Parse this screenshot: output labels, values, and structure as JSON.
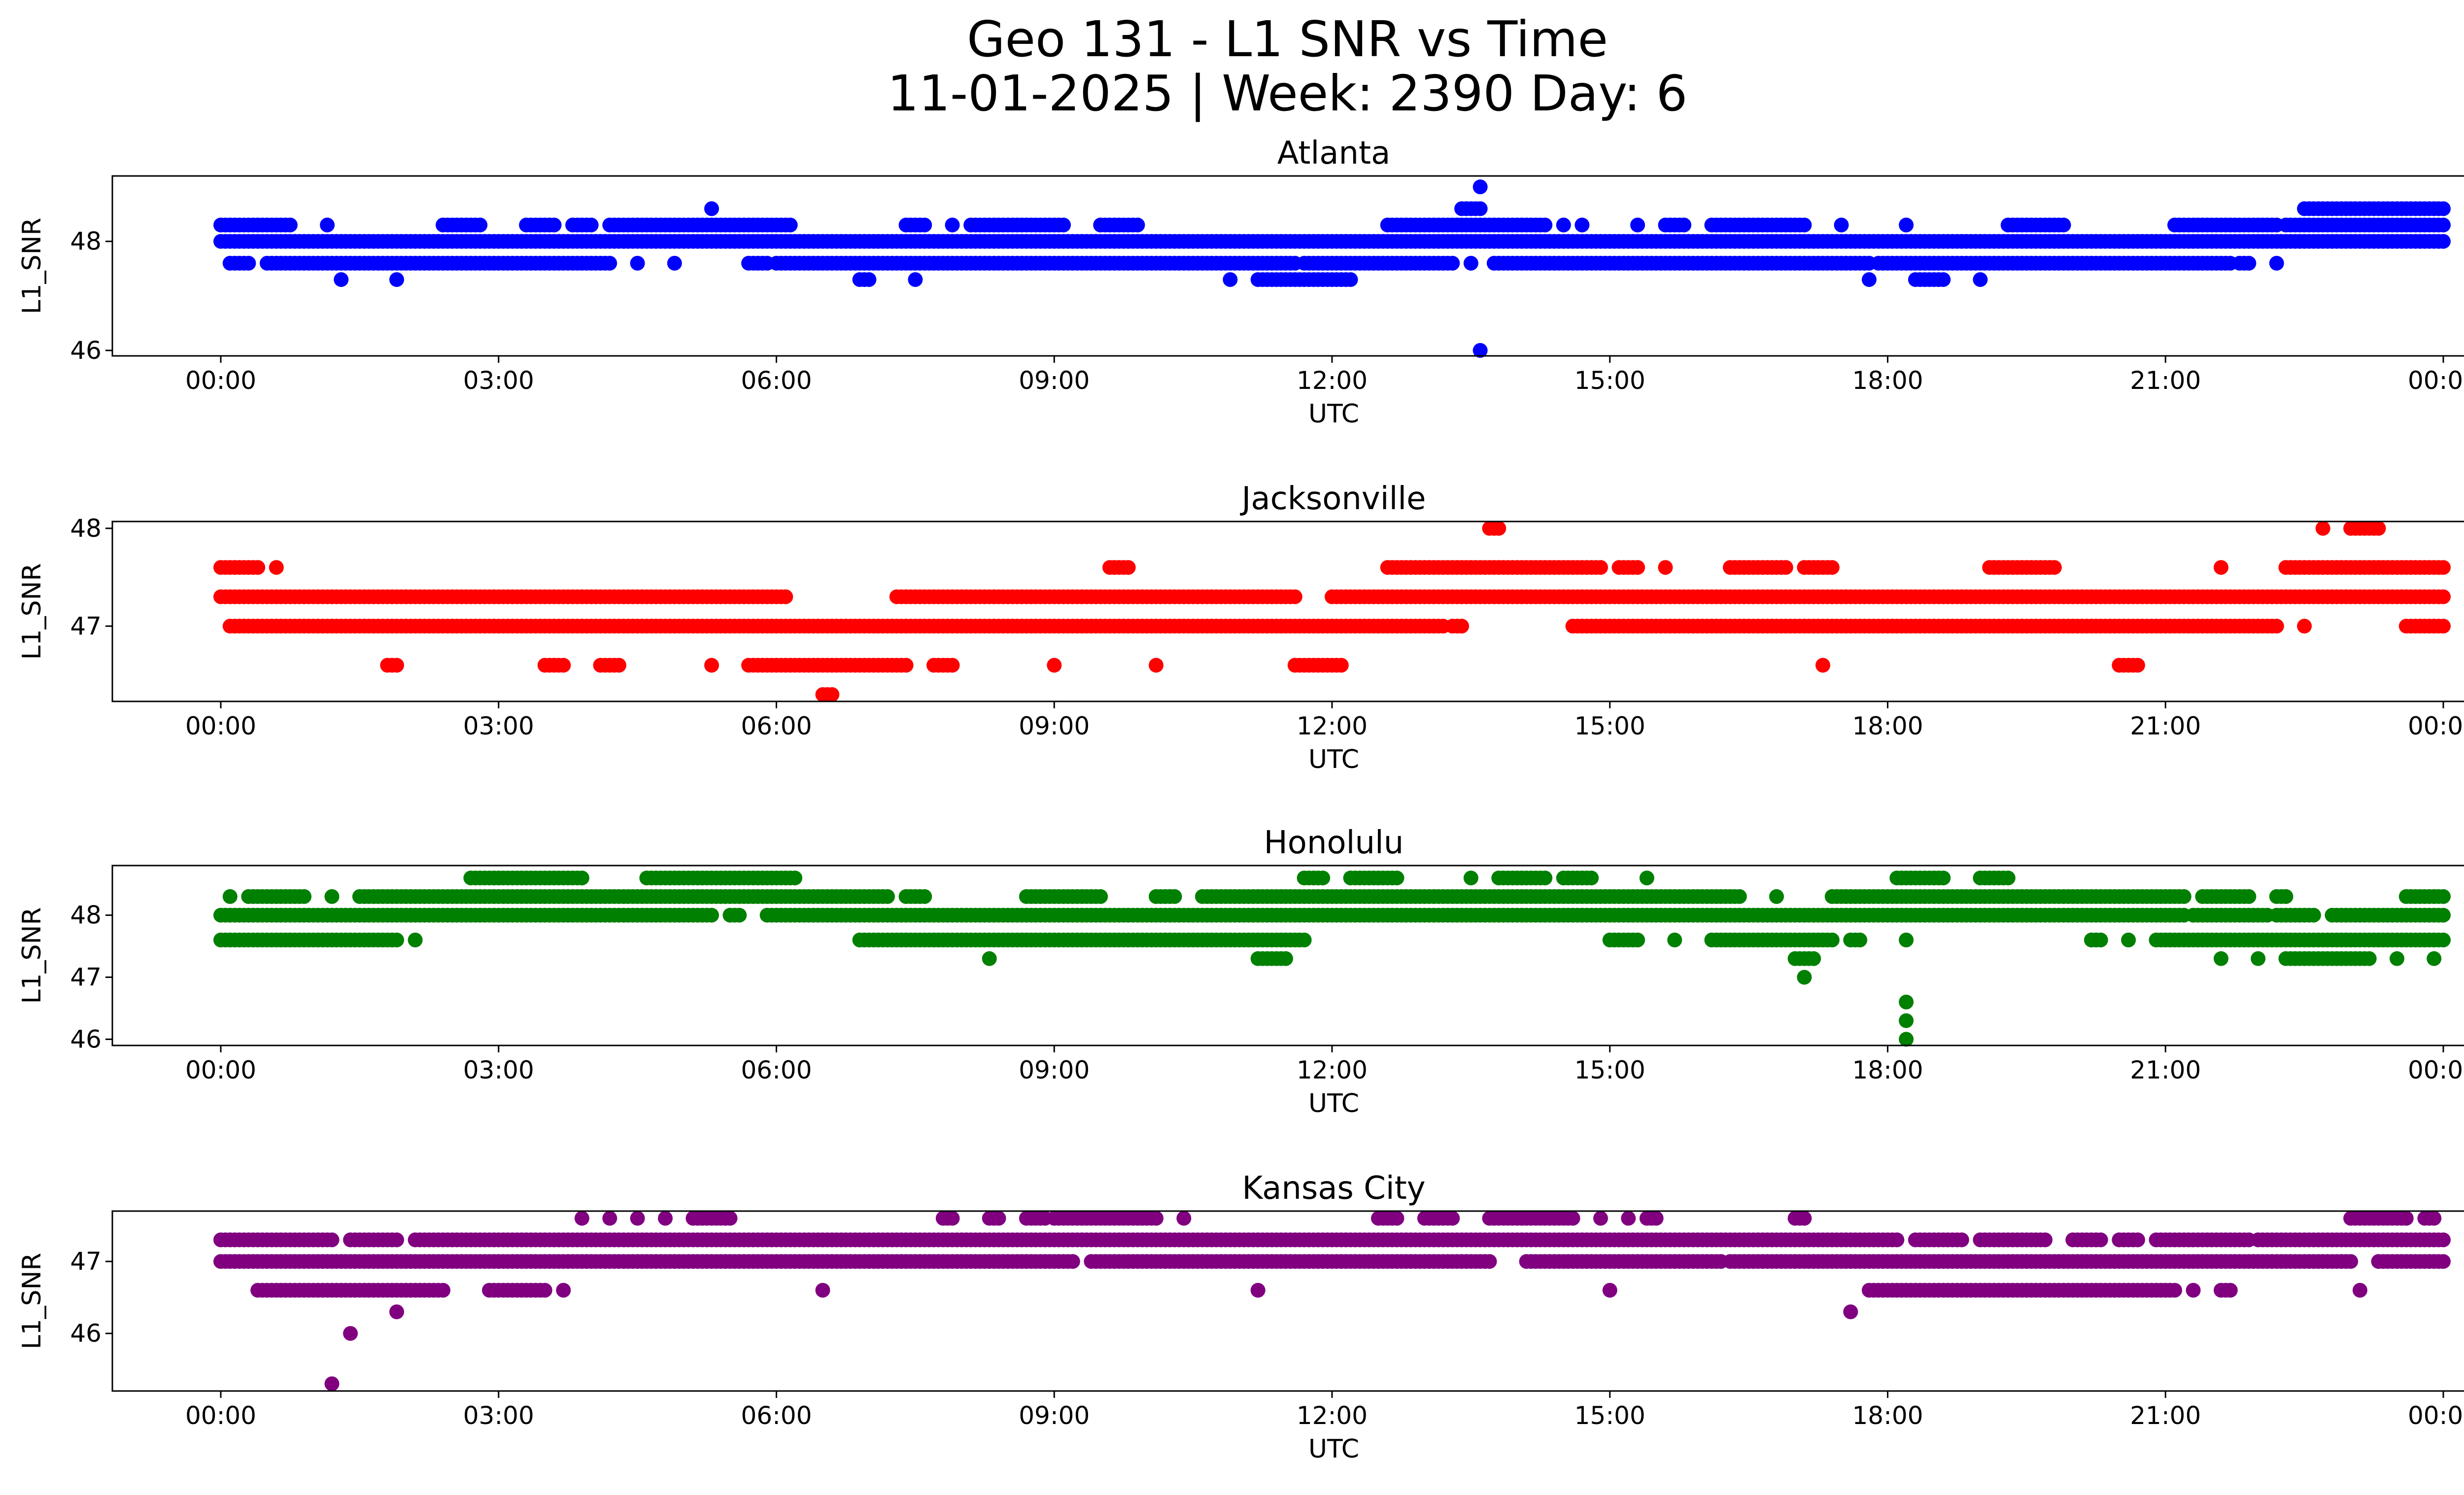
{
  "title": {
    "line1": "Geo 131 - L1 SNR vs Time",
    "line2": "11-01-2025 | Week: 2390 Day: 6"
  },
  "chart_data": [
    {
      "type": "scatter",
      "title": "Atlanta",
      "color": "#0000ff",
      "xlabel": "UTC",
      "ylabel": "L1_SNR",
      "xlim": [
        -0.4,
        25.2
      ],
      "ylim": [
        45.9,
        49.2
      ],
      "xticks": [
        "00:00",
        "03:00",
        "06:00",
        "09:00",
        "12:00",
        "15:00",
        "18:00",
        "21:00",
        "00:00"
      ],
      "yticks": [
        "46",
        "48"
      ],
      "bands": [
        {
          "y": 48.0,
          "ranges": [
            [
              0.0,
              24.0
            ]
          ]
        },
        {
          "y": 48.3,
          "ranges": [
            [
              0.0,
              0.75
            ],
            [
              1.15,
              1.15
            ],
            [
              2.4,
              2.8
            ],
            [
              3.3,
              3.6
            ],
            [
              3.8,
              4.0
            ],
            [
              4.2,
              6.15
            ],
            [
              7.4,
              7.6
            ],
            [
              7.9,
              7.9
            ],
            [
              8.1,
              9.1
            ],
            [
              9.5,
              9.9
            ],
            [
              12.6,
              14.3
            ],
            [
              14.5,
              14.5
            ],
            [
              14.7,
              14.7
            ],
            [
              15.3,
              15.3
            ],
            [
              15.6,
              15.8
            ],
            [
              16.1,
              17.1
            ],
            [
              17.5,
              17.5
            ],
            [
              18.2,
              18.2
            ],
            [
              19.3,
              19.9
            ],
            [
              21.1,
              22.2
            ],
            [
              22.3,
              24.0
            ]
          ]
        },
        {
          "y": 47.6,
          "ranges": [
            [
              0.1,
              0.3
            ],
            [
              0.5,
              4.2
            ],
            [
              4.5,
              4.5
            ],
            [
              4.9,
              4.9
            ],
            [
              5.7,
              5.9
            ],
            [
              6.0,
              11.6
            ],
            [
              11.7,
              13.3
            ],
            [
              13.5,
              13.5
            ],
            [
              13.75,
              17.8
            ],
            [
              17.9,
              21.7
            ],
            [
              21.8,
              21.9
            ],
            [
              22.2,
              22.2
            ]
          ]
        },
        {
          "y": 47.3,
          "ranges": [
            [
              1.3,
              1.3
            ],
            [
              1.9,
              1.9
            ],
            [
              6.9,
              7.0
            ],
            [
              7.5,
              7.5
            ],
            [
              10.9,
              10.9
            ],
            [
              11.2,
              12.2
            ],
            [
              17.8,
              17.8
            ],
            [
              18.3,
              18.6
            ],
            [
              19.0,
              19.0
            ]
          ]
        },
        {
          "y": 48.6,
          "ranges": [
            [
              5.3,
              5.3
            ],
            [
              13.4,
              13.6
            ],
            [
              22.5,
              24.0
            ]
          ]
        },
        {
          "y": 49.0,
          "ranges": [
            [
              13.6,
              13.6
            ]
          ]
        },
        {
          "y": 46.0,
          "ranges": [
            [
              13.6,
              13.6
            ]
          ]
        }
      ]
    },
    {
      "type": "scatter",
      "title": "Jacksonville",
      "color": "#ff0000",
      "xlabel": "UTC",
      "ylabel": "L1_SNR",
      "xlim": [
        -0.4,
        25.2
      ],
      "ylim": [
        46.23,
        48.07
      ],
      "xticks": [
        "00:00",
        "03:00",
        "06:00",
        "09:00",
        "12:00",
        "15:00",
        "18:00",
        "21:00",
        "00:00"
      ],
      "yticks": [
        "47",
        "48"
      ],
      "bands": [
        {
          "y": 47.3,
          "ranges": [
            [
              0.0,
              6.1
            ],
            [
              7.3,
              11.6
            ],
            [
              12.0,
              24.0
            ]
          ]
        },
        {
          "y": 47.0,
          "ranges": [
            [
              0.1,
              13.2
            ],
            [
              13.3,
              13.4
            ],
            [
              14.6,
              22.2
            ],
            [
              22.5,
              22.5
            ],
            [
              23.6,
              24.0
            ]
          ]
        },
        {
          "y": 47.6,
          "ranges": [
            [
              0.0,
              0.4
            ],
            [
              0.6,
              0.6
            ],
            [
              9.6,
              9.8
            ],
            [
              12.6,
              14.9
            ],
            [
              15.1,
              15.3
            ],
            [
              15.6,
              15.6
            ],
            [
              16.3,
              16.9
            ],
            [
              17.1,
              17.4
            ],
            [
              19.1,
              19.8
            ],
            [
              21.6,
              21.6
            ],
            [
              22.3,
              24.0
            ]
          ]
        },
        {
          "y": 46.6,
          "ranges": [
            [
              1.8,
              1.9
            ],
            [
              3.5,
              3.7
            ],
            [
              4.1,
              4.3
            ],
            [
              5.3,
              5.3
            ],
            [
              5.7,
              7.4
            ],
            [
              7.7,
              7.9
            ],
            [
              9.0,
              9.0
            ],
            [
              10.1,
              10.1
            ],
            [
              11.6,
              12.1
            ],
            [
              17.3,
              17.3
            ],
            [
              20.5,
              20.7
            ]
          ]
        },
        {
          "y": 46.3,
          "ranges": [
            [
              6.5,
              6.6
            ]
          ]
        },
        {
          "y": 48.0,
          "ranges": [
            [
              13.7,
              13.8
            ],
            [
              22.7,
              22.7
            ],
            [
              23.0,
              23.3
            ]
          ]
        }
      ]
    },
    {
      "type": "scatter",
      "title": "Honolulu",
      "color": "#008000",
      "xlabel": "UTC",
      "ylabel": "L1_SNR",
      "xlim": [
        -0.4,
        25.2
      ],
      "ylim": [
        45.9,
        48.8
      ],
      "xticks": [
        "00:00",
        "03:00",
        "06:00",
        "09:00",
        "12:00",
        "15:00",
        "18:00",
        "21:00",
        "00:00"
      ],
      "yticks": [
        "46",
        "47",
        "48"
      ],
      "bands": [
        {
          "y": 48.0,
          "ranges": [
            [
              0.0,
              5.3
            ],
            [
              5.5,
              5.6
            ],
            [
              5.9,
              21.2
            ],
            [
              21.3,
              22.1
            ],
            [
              22.2,
              22.6
            ],
            [
              22.8,
              24.0
            ]
          ]
        },
        {
          "y": 48.3,
          "ranges": [
            [
              0.1,
              0.1
            ],
            [
              0.3,
              0.9
            ],
            [
              1.2,
              1.2
            ],
            [
              1.5,
              7.2
            ],
            [
              7.4,
              7.6
            ],
            [
              8.7,
              9.5
            ],
            [
              10.1,
              10.3
            ],
            [
              10.6,
              16.4
            ],
            [
              16.8,
              16.8
            ],
            [
              17.4,
              21.2
            ],
            [
              21.4,
              21.9
            ],
            [
              22.2,
              22.3
            ],
            [
              23.6,
              24.0
            ]
          ]
        },
        {
          "y": 47.6,
          "ranges": [
            [
              0.0,
              1.9
            ],
            [
              2.1,
              2.1
            ],
            [
              6.9,
              11.7
            ],
            [
              15.0,
              15.3
            ],
            [
              15.7,
              15.7
            ],
            [
              16.1,
              17.4
            ],
            [
              17.6,
              17.7
            ],
            [
              18.2,
              18.2
            ],
            [
              20.2,
              20.3
            ],
            [
              20.6,
              20.6
            ],
            [
              20.9,
              24.0
            ]
          ]
        },
        {
          "y": 48.6,
          "ranges": [
            [
              2.7,
              3.9
            ],
            [
              4.6,
              6.2
            ],
            [
              11.7,
              11.9
            ],
            [
              12.2,
              12.7
            ],
            [
              13.5,
              13.5
            ],
            [
              13.8,
              14.3
            ],
            [
              14.5,
              14.8
            ],
            [
              15.4,
              15.4
            ],
            [
              18.1,
              18.6
            ],
            [
              19.0,
              19.3
            ]
          ]
        },
        {
          "y": 47.3,
          "ranges": [
            [
              8.3,
              8.3
            ],
            [
              11.2,
              11.5
            ],
            [
              17.0,
              17.2
            ],
            [
              21.6,
              21.6
            ],
            [
              22.0,
              22.0
            ],
            [
              22.3,
              23.2
            ],
            [
              23.5,
              23.5
            ],
            [
              23.9,
              23.9
            ]
          ]
        },
        {
          "y": 47.0,
          "ranges": [
            [
              17.1,
              17.1
            ]
          ]
        },
        {
          "y": 46.6,
          "ranges": [
            [
              18.2,
              18.2
            ]
          ]
        },
        {
          "y": 46.3,
          "ranges": [
            [
              18.2,
              18.2
            ]
          ]
        },
        {
          "y": 46.0,
          "ranges": [
            [
              18.2,
              18.2
            ]
          ]
        }
      ]
    },
    {
      "type": "scatter",
      "title": "Kansas City",
      "color": "#800080",
      "xlabel": "UTC",
      "ylabel": "L1_SNR",
      "xlim": [
        -0.4,
        25.2
      ],
      "ylim": [
        45.2,
        47.7
      ],
      "xticks": [
        "00:00",
        "03:00",
        "06:00",
        "09:00",
        "12:00",
        "15:00",
        "18:00",
        "21:00",
        "00:00"
      ],
      "yticks": [
        "46",
        "47"
      ],
      "bands": [
        {
          "y": 47.3,
          "ranges": [
            [
              0.0,
              1.2
            ],
            [
              1.4,
              1.9
            ],
            [
              2.1,
              18.1
            ],
            [
              18.3,
              18.8
            ],
            [
              19.0,
              19.7
            ],
            [
              20.0,
              20.3
            ],
            [
              20.5,
              20.7
            ],
            [
              20.9,
              21.9
            ],
            [
              22.0,
              24.0
            ]
          ]
        },
        {
          "y": 47.0,
          "ranges": [
            [
              0.0,
              9.2
            ],
            [
              9.4,
              13.7
            ],
            [
              14.1,
              16.2
            ],
            [
              16.3,
              23.0
            ],
            [
              23.3,
              24.0
            ]
          ]
        },
        {
          "y": 46.6,
          "ranges": [
            [
              0.4,
              2.4
            ],
            [
              2.9,
              3.5
            ],
            [
              3.7,
              3.7
            ],
            [
              6.5,
              6.5
            ],
            [
              11.2,
              11.2
            ],
            [
              15.0,
              15.0
            ],
            [
              17.8,
              21.1
            ],
            [
              21.3,
              21.3
            ],
            [
              21.6,
              21.7
            ],
            [
              23.1,
              23.1
            ]
          ]
        },
        {
          "y": 47.6,
          "ranges": [
            [
              3.9,
              3.9
            ],
            [
              4.2,
              4.2
            ],
            [
              4.5,
              4.5
            ],
            [
              4.8,
              4.8
            ],
            [
              5.1,
              5.5
            ],
            [
              7.8,
              7.9
            ],
            [
              8.3,
              8.4
            ],
            [
              8.7,
              8.9
            ],
            [
              9.0,
              10.1
            ],
            [
              10.4,
              10.4
            ],
            [
              12.5,
              12.7
            ],
            [
              13.0,
              13.3
            ],
            [
              13.7,
              14.6
            ],
            [
              14.9,
              14.9
            ],
            [
              15.2,
              15.2
            ],
            [
              15.4,
              15.5
            ],
            [
              17.0,
              17.1
            ],
            [
              23.0,
              23.6
            ],
            [
              23.8,
              23.9
            ]
          ]
        },
        {
          "y": 46.3,
          "ranges": [
            [
              1.9,
              1.9
            ],
            [
              17.6,
              17.6
            ]
          ]
        },
        {
          "y": 46.0,
          "ranges": [
            [
              1.4,
              1.4
            ]
          ]
        },
        {
          "y": 45.3,
          "ranges": [
            [
              1.2,
              1.2
            ]
          ]
        }
      ]
    }
  ]
}
